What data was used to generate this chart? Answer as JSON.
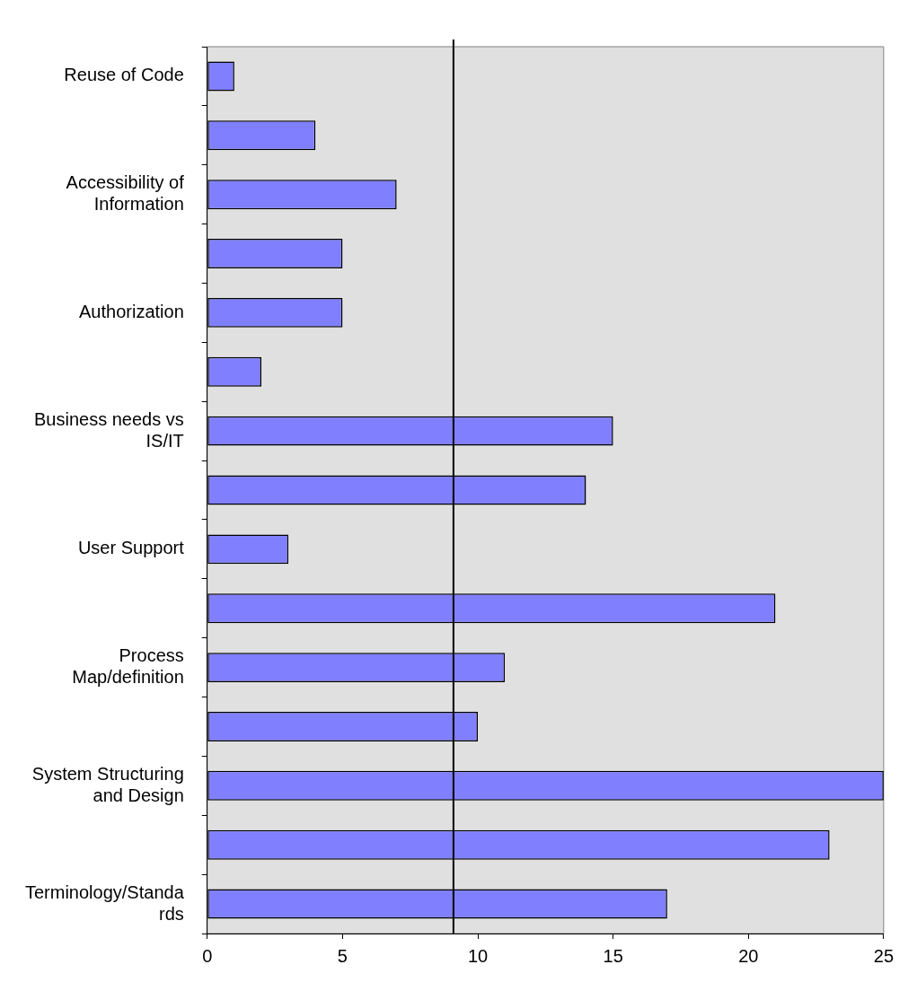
{
  "chart_data": {
    "type": "bar",
    "orientation": "horizontal",
    "categories": [
      "Reuse of Code",
      null,
      "Accessibility of Information",
      null,
      "Authorization",
      null,
      "Business needs vs IS/IT",
      null,
      "User Support",
      null,
      "Process Map/definition",
      null,
      "System Structuring and Design",
      null,
      "Terminology/Standards"
    ],
    "values": [
      1,
      4,
      7,
      5,
      5,
      2,
      15,
      14,
      3,
      21,
      11,
      10,
      25,
      23,
      17
    ],
    "color": "#8080ff",
    "xlim": [
      0,
      25
    ],
    "xticks": [
      0,
      5,
      10,
      15,
      20,
      25
    ],
    "grid": false,
    "legend": false,
    "ref_lines": [
      {
        "axis": "x",
        "value": 9.1,
        "color": "#000000"
      }
    ]
  }
}
